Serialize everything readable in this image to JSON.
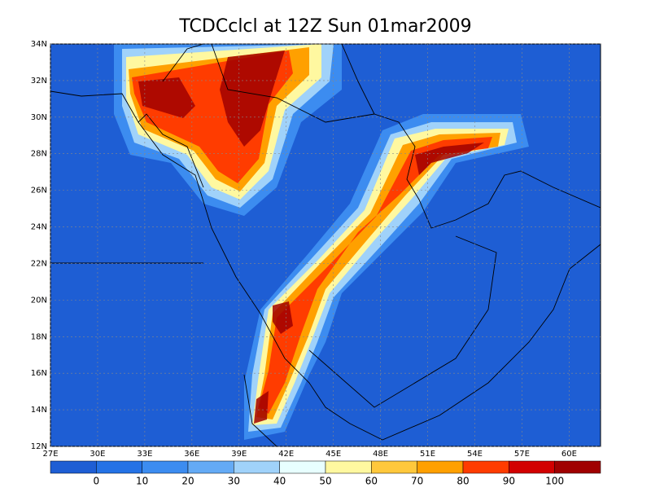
{
  "title": "TCDCclcl at 12Z Sun 01mar2009",
  "map": {
    "lonlim": [
      27,
      62
    ],
    "latlim": [
      12,
      34
    ],
    "lon_ticks": [
      {
        "value": 27,
        "label": "27E"
      },
      {
        "value": 30,
        "label": "30E"
      },
      {
        "value": 33,
        "label": "33E"
      },
      {
        "value": 36,
        "label": "36E"
      },
      {
        "value": 39,
        "label": "39E"
      },
      {
        "value": 42,
        "label": "42E"
      },
      {
        "value": 45,
        "label": "45E"
      },
      {
        "value": 48,
        "label": "48E"
      },
      {
        "value": 51,
        "label": "51E"
      },
      {
        "value": 54,
        "label": "54E"
      },
      {
        "value": 57,
        "label": "57E"
      },
      {
        "value": 60,
        "label": "60E"
      }
    ],
    "lat_ticks": [
      {
        "value": 12,
        "label": "12N"
      },
      {
        "value": 14,
        "label": "14N"
      },
      {
        "value": 16,
        "label": "16N"
      },
      {
        "value": 18,
        "label": "18N"
      },
      {
        "value": 20,
        "label": "20N"
      },
      {
        "value": 22,
        "label": "22N"
      },
      {
        "value": 24,
        "label": "24N"
      },
      {
        "value": 26,
        "label": "26N"
      },
      {
        "value": 28,
        "label": "28N"
      },
      {
        "value": 30,
        "label": "30N"
      },
      {
        "value": 32,
        "label": "32N"
      },
      {
        "value": 34,
        "label": "34N"
      }
    ]
  },
  "colorbar": {
    "levels": [
      0,
      10,
      20,
      30,
      40,
      50,
      60,
      70,
      80,
      90,
      100
    ],
    "colors": [
      "#1e5ed4",
      "#2472e6",
      "#3c8cf0",
      "#64aaf5",
      "#a0d2fa",
      "#e8ffff",
      "#fff8a0",
      "#ffc83c",
      "#ffa000",
      "#ff3c00",
      "#d20000",
      "#a00000"
    ]
  }
}
